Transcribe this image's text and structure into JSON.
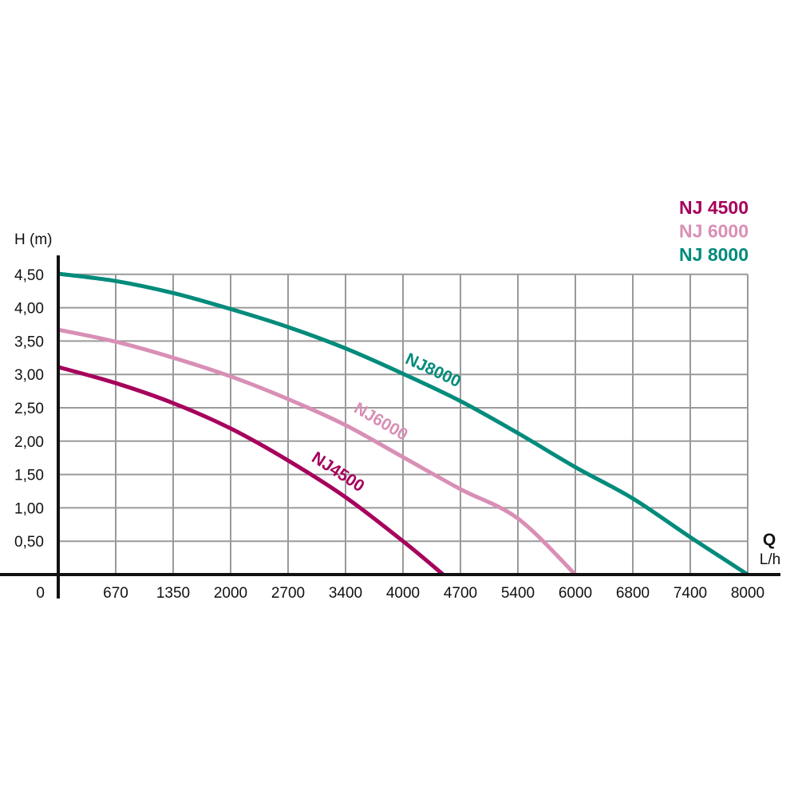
{
  "chart_data": {
    "type": "line",
    "title": "",
    "xlabel": "Q",
    "xunit": "L/h",
    "ylabel": "H (m)",
    "origin_label": "0",
    "x_ticks": [
      0,
      670,
      1350,
      2000,
      2700,
      3400,
      4000,
      4700,
      5400,
      6000,
      6800,
      7400,
      8000
    ],
    "x_tick_labels": [
      "670",
      "1350",
      "2000",
      "2700",
      "3400",
      "4000",
      "4700",
      "5400",
      "6000",
      "6800",
      "7400",
      "8000"
    ],
    "y_ticks": [
      0.5,
      1.0,
      1.5,
      2.0,
      2.5,
      3.0,
      3.5,
      4.0,
      4.5
    ],
    "y_tick_labels": [
      "0,50",
      "1,00",
      "1,50",
      "2,00",
      "2,50",
      "3,00",
      "3,50",
      "4,00",
      "4,50"
    ],
    "xlim": [
      0,
      8000
    ],
    "ylim": [
      0,
      4.5
    ],
    "grid": true,
    "legend_position": "top-right",
    "series": [
      {
        "name": "NJ 4500",
        "curve_label": "NJ4500",
        "color": "#a6005c",
        "x": [
          0,
          670,
          1350,
          2000,
          2700,
          3400,
          4000,
          4490
        ],
        "y": [
          3.11,
          2.87,
          2.57,
          2.19,
          1.71,
          1.16,
          0.5,
          0
        ]
      },
      {
        "name": "NJ 6000",
        "curve_label": "NJ6000",
        "color": "#d98fb5",
        "x": [
          0,
          670,
          1350,
          2000,
          2700,
          3400,
          4000,
          4700,
          5400,
          6000
        ],
        "y": [
          3.67,
          3.49,
          3.25,
          2.97,
          2.63,
          2.24,
          1.76,
          1.28,
          0.84,
          0
        ]
      },
      {
        "name": "NJ 8000",
        "curve_label": "NJ8000",
        "color": "#008b7b",
        "x": [
          0,
          670,
          1350,
          2000,
          2700,
          3400,
          4000,
          4700,
          5400,
          6000,
          6800,
          7400,
          8000
        ],
        "y": [
          4.51,
          4.4,
          4.22,
          3.98,
          3.71,
          3.39,
          3.01,
          2.6,
          2.12,
          1.61,
          1.14,
          0.56,
          0
        ]
      }
    ]
  }
}
